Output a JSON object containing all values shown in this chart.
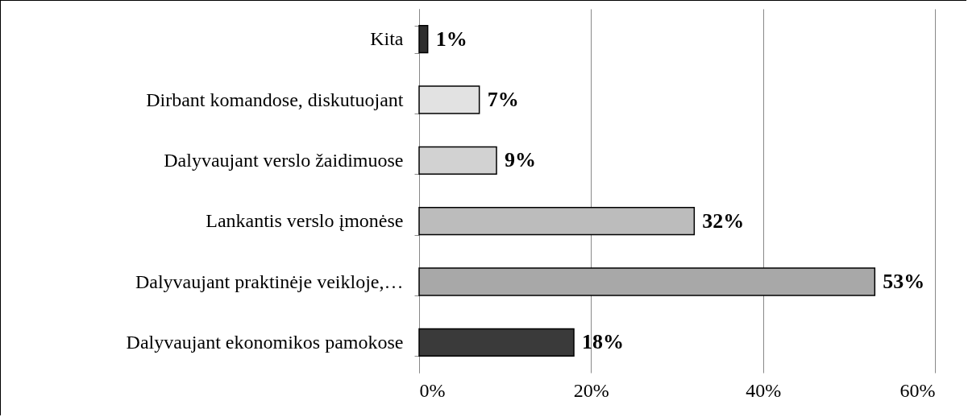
{
  "chart_data": {
    "type": "bar",
    "orientation": "horizontal",
    "categories": [
      "Kita",
      "Dirbant komandose, diskutuojant",
      "Dalyvaujant verslo žaidimuose",
      "Lankantis verslo įmonėse",
      "Dalyvaujant praktinėje veikloje,…",
      "Dalyvaujant ekonomikos pamokose"
    ],
    "values": [
      1,
      7,
      9,
      32,
      53,
      18
    ],
    "value_labels": [
      "1%",
      "7%",
      "9%",
      "32%",
      "53%",
      "18%"
    ],
    "colors": [
      "#2e2e2e",
      "#e2e2e2",
      "#d2d2d2",
      "#bcbcbc",
      "#a8a8a8",
      "#3a3a3a"
    ],
    "xlim": [
      0,
      60
    ],
    "xticks": [
      {
        "value": 0,
        "label": "0%"
      },
      {
        "value": 20,
        "label": "20%"
      },
      {
        "value": 40,
        "label": "40%"
      },
      {
        "value": 60,
        "label": "60%"
      }
    ],
    "grid": "x"
  }
}
